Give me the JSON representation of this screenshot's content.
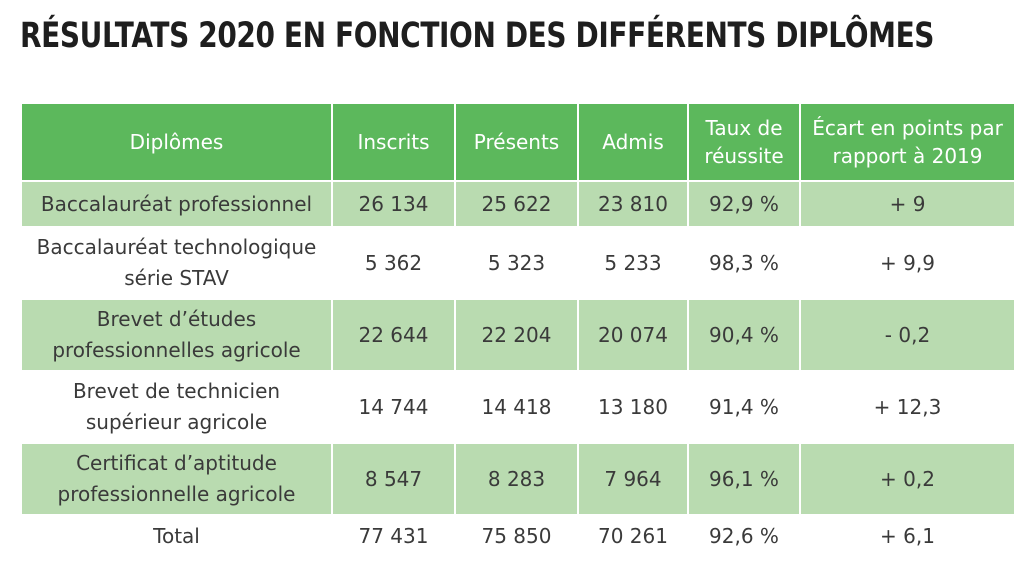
{
  "title": "RÉSULTATS 2020 EN FONCTION DES DIFFÉRENTS DIPLÔMES",
  "colors": {
    "header_green": "#5cb85c",
    "row_shade": "#b9dbb0",
    "text": "#3a3a3a"
  },
  "table": {
    "headers": {
      "diplome": "Diplômes",
      "inscrits": "Inscrits",
      "presents": "Présents",
      "admis": "Admis",
      "taux": "Taux de réussite",
      "ecart": "Écart en points par rapport à 2019"
    },
    "rows": [
      {
        "diplome": "Baccalauréat professionnel",
        "inscrits": "26 134",
        "presents": "25 622",
        "admis": "23 810",
        "taux": "92,9 %",
        "ecart": "+ 9"
      },
      {
        "diplome": "Baccalauréat technologique série STAV",
        "inscrits": "5 362",
        "presents": "5 323",
        "admis": "5 233",
        "taux": "98,3 %",
        "ecart": "+ 9,9"
      },
      {
        "diplome": "Brevet d’études professionnelles agricole",
        "inscrits": "22 644",
        "presents": "22 204",
        "admis": "20 074",
        "taux": "90,4 %",
        "ecart": "- 0,2"
      },
      {
        "diplome": "Brevet de technicien supérieur agricole",
        "inscrits": "14 744",
        "presents": "14 418",
        "admis": "13 180",
        "taux": "91,4 %",
        "ecart": "+ 12,3"
      },
      {
        "diplome": "Certificat d’aptitude professionnelle agricole",
        "inscrits": "8 547",
        "presents": "8 283",
        "admis": "7 964",
        "taux": "96,1 %",
        "ecart": "+ 0,2"
      },
      {
        "diplome": "Total",
        "inscrits": "77 431",
        "presents": "75 850",
        "admis": "70 261",
        "taux": "92,6 %",
        "ecart": "+ 6,1"
      }
    ]
  }
}
